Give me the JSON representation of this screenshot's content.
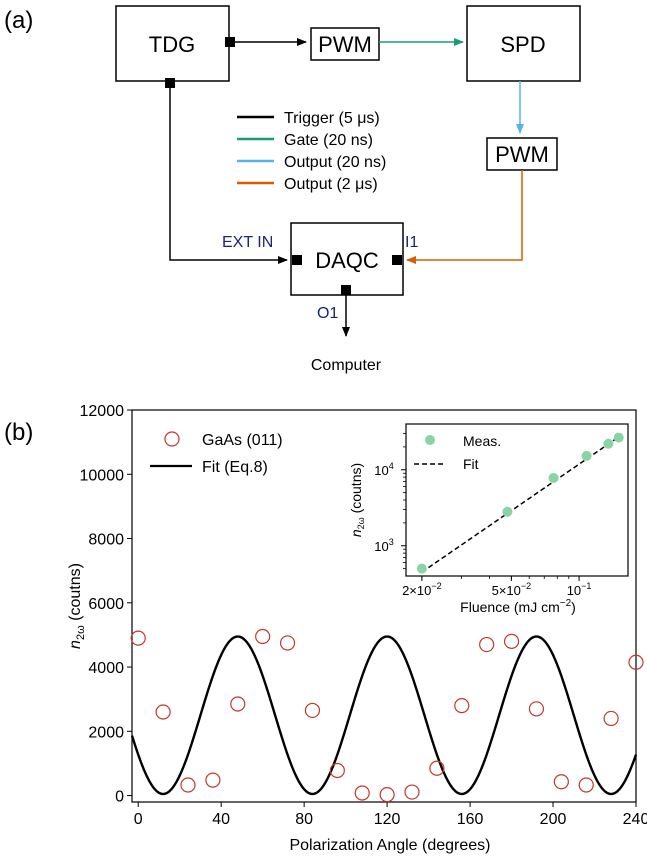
{
  "panel_a": {
    "label": "(a)",
    "blocks": {
      "tdg": "TDG",
      "pwm1": "PWM",
      "spd": "SPD",
      "pwm2": "PWM",
      "daqc": "DAQC"
    },
    "ports": {
      "ext_in": "EXT IN",
      "i1": "I1",
      "o1": "O1"
    },
    "computer": "Computer",
    "legend": [
      {
        "label": "Trigger (5 μs)",
        "color": "#000000"
      },
      {
        "label": "Gate (20 ns)",
        "color": "#1a9b78"
      },
      {
        "label": "Output (20 ns)",
        "color": "#56b4e9"
      },
      {
        "label": "Output (2 μs)",
        "color": "#d55e00"
      }
    ],
    "port_label_color": "#1a237e"
  },
  "panel_b": {
    "label": "(b)",
    "chart_data": [
      {
        "type": "scatter",
        "xlabel": "Polarization Angle (degrees)",
        "ylabel_main": "n",
        "ylabel_sub": "2ω",
        "ylabel_rest": " (coutns)",
        "xlim": [
          -3,
          240
        ],
        "ylim": [
          -200,
          12000
        ],
        "xticks": [
          0,
          40,
          80,
          120,
          160,
          200,
          240
        ],
        "yticks": [
          0,
          2000,
          4000,
          6000,
          8000,
          10000,
          12000
        ],
        "legend_location": "upper-left",
        "series": [
          {
            "name": "GaAs (011)",
            "marker": "open-circle",
            "color": "#c0392b",
            "x": [
              0,
              12,
              24,
              36,
              48,
              60,
              72,
              84,
              96,
              108,
              120,
              132,
              144,
              156,
              168,
              180,
              192,
              204,
              216,
              228,
              240
            ],
            "y": [
              4900,
              2600,
              330,
              480,
              2850,
              4950,
              4750,
              2650,
              780,
              80,
              30,
              110,
              850,
              2800,
              4700,
              4800,
              2700,
              430,
              330,
              2400,
              4150
            ]
          },
          {
            "name": "Fit (Eq.8)",
            "style": "solid-line",
            "color": "#000000",
            "model": {
              "amplitude": 4900,
              "period": 72,
              "phase_deg": 120,
              "offset": 50
            }
          }
        ]
      },
      {
        "type": "scatter",
        "scale": "log-log",
        "xlabel": "Fluence (mJ cm",
        "xlabel_sup": "−2",
        "xlabel_end": ")",
        "ylabel_main": "n",
        "ylabel_sub": "2ω",
        "ylabel_rest": " (coutns)",
        "xlim": [
          0.017,
          0.165
        ],
        "ylim": [
          400,
          40000
        ],
        "xtick_labels": [
          {
            "value": 0.02,
            "mantissa": "2×10",
            "exp": "−2"
          },
          {
            "value": 0.05,
            "mantissa": "5×10",
            "exp": "−2"
          },
          {
            "value": 0.1,
            "mantissa": "10",
            "exp": "−1"
          }
        ],
        "ytick_labels": [
          {
            "value": 1000,
            "mantissa": "10",
            "exp": "3"
          },
          {
            "value": 10000,
            "mantissa": "10",
            "exp": "4"
          }
        ],
        "legend_location": "upper-left",
        "series": [
          {
            "name": "Meas.",
            "marker": "filled-circle",
            "color": "#88d4a3",
            "x": [
              0.02,
              0.048,
              0.077,
              0.108,
              0.135,
              0.15
            ],
            "y": [
              500,
              2800,
              7800,
              15200,
              22000,
              26500
            ]
          },
          {
            "name": "Fit",
            "style": "dashed-line",
            "color": "#000000",
            "x": [
              0.02,
              0.15
            ],
            "y": [
              450,
              27000
            ]
          }
        ]
      }
    ]
  }
}
